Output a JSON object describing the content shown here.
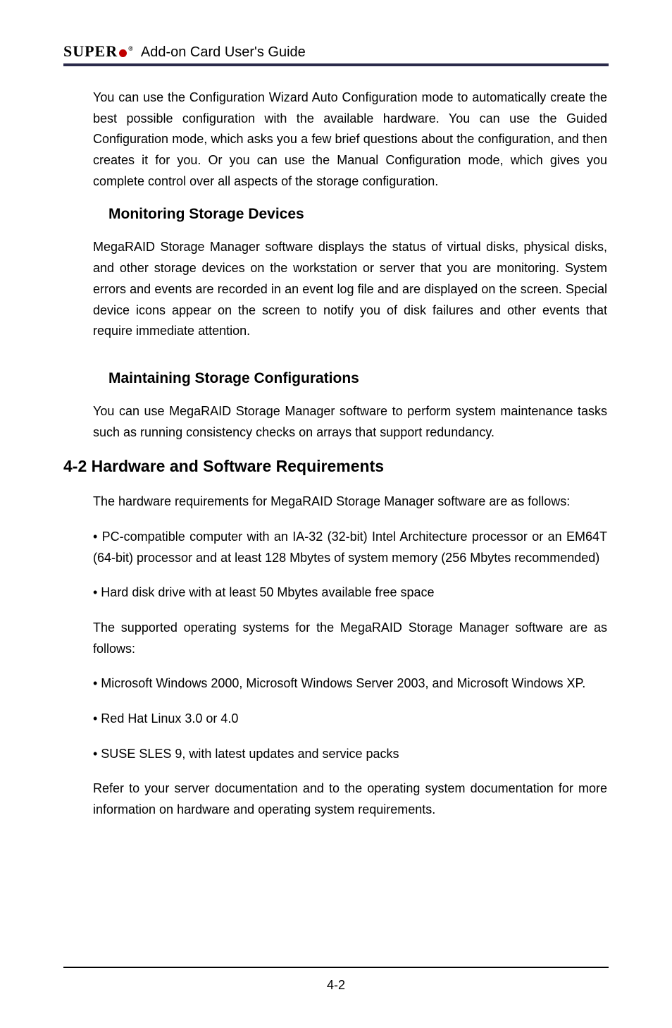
{
  "header": {
    "brand_left": "SUPER",
    "brand_reg": "®",
    "title": "Add-on Card User's Guide"
  },
  "body": {
    "p1": "You can use the Configuration Wizard Auto Configuration mode to automatically create the best possible configuration with the available hardware. You can use the Guided Configuration mode, which asks you a few brief questions about the configuration, and then creates it for you. Or you can use the Manual Configuration mode, which gives you complete control over all aspects of the storage configuration.",
    "h3_1": "Monitoring Storage Devices",
    "p2": "MegaRAID Storage Manager software displays the status of virtual disks, physical disks, and other storage devices on the workstation or server that you are monitoring. System errors and events are recorded in an event log file and are displayed on the screen. Special device icons appear on the screen to notify you of disk failures and other events that require immediate attention.",
    "h3_2": "Maintaining Storage Configurations",
    "p3": "You can use MegaRAID Storage Manager software to perform system maintenance tasks such as running consistency checks on arrays that support redundancy.",
    "h2_1": "4-2 Hardware and Software Requirements",
    "p4": "The hardware requirements for MegaRAID Storage Manager software are as follows:",
    "p5": "• PC-compatible computer with an IA-32 (32-bit) Intel Architecture processor or an EM64T (64-bit) processor and at least 128 Mbytes of system memory (256 Mbytes recommended)",
    "p6": "• Hard disk drive with at least 50 Mbytes available free space",
    "p7": "The supported operating systems for the MegaRAID Storage Manager software are as follows:",
    "p8": "• Microsoft Windows 2000, Microsoft Windows Server 2003, and Microsoft Windows XP.",
    "p9": "• Red Hat Linux 3.0 or 4.0",
    "p10": "• SUSE SLES 9, with latest updates and service packs",
    "p11": "Refer to your server documentation and to the operating system documentation for more information on hardware and operating system requirements."
  },
  "footer": {
    "page": "4-2"
  }
}
